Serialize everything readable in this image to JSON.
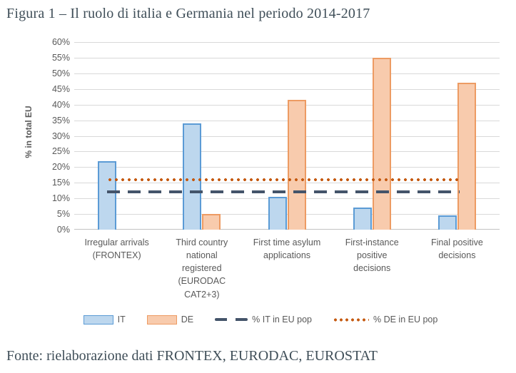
{
  "title": "Figura 1 – Il ruolo di italia e Germania nel periodo 2014-2017",
  "footer": "Fonte: rielaborazione dati FRONTEX, EURODAC, EUROSTAT",
  "colors": {
    "it_fill": "#BDD7EE",
    "it_border": "#5B9BD5",
    "de_fill": "#F8CBAD",
    "de_border": "#ED9B63",
    "it_pop_line": "#44546A",
    "de_pop_line": "#C55A11",
    "gridline": "#D9D9D9",
    "axis_text": "#595959",
    "serif_text": "#3F4E58"
  },
  "chart_data": {
    "type": "bar",
    "title": "",
    "ylabel": "% in total EU",
    "xlabel": "",
    "ylim": [
      0,
      60
    ],
    "ytick_step": 5,
    "yticks": [
      "60%",
      "55%",
      "50%",
      "45%",
      "40%",
      "35%",
      "30%",
      "25%",
      "20%",
      "15%",
      "10%",
      "5%",
      "0%"
    ],
    "grid": true,
    "legend_position": "bottom",
    "categories": [
      "Irregular arrivals\n(FRONTEX)",
      "Third country\nnational\nregistered\n(EURODAC\nCAT2+3)",
      "First time asylum\napplications",
      "First-instance\npositive\ndecisions",
      "Final positive\ndecisions"
    ],
    "series": [
      {
        "name": "IT",
        "kind": "bar",
        "fill": "#BDD7EE",
        "border": "#5B9BD5",
        "values": [
          22,
          34,
          10.5,
          7,
          4.5
        ]
      },
      {
        "name": "DE",
        "kind": "bar",
        "fill": "#F8CBAD",
        "border": "#ED9B63",
        "values": [
          0,
          5,
          41.5,
          55,
          47
        ]
      },
      {
        "name": "% IT in EU pop",
        "kind": "line",
        "style": "dashed",
        "color": "#44546A",
        "value": 12
      },
      {
        "name": "% DE in EU pop",
        "kind": "line",
        "style": "dotted",
        "color": "#C55A11",
        "value": 16
      }
    ]
  }
}
